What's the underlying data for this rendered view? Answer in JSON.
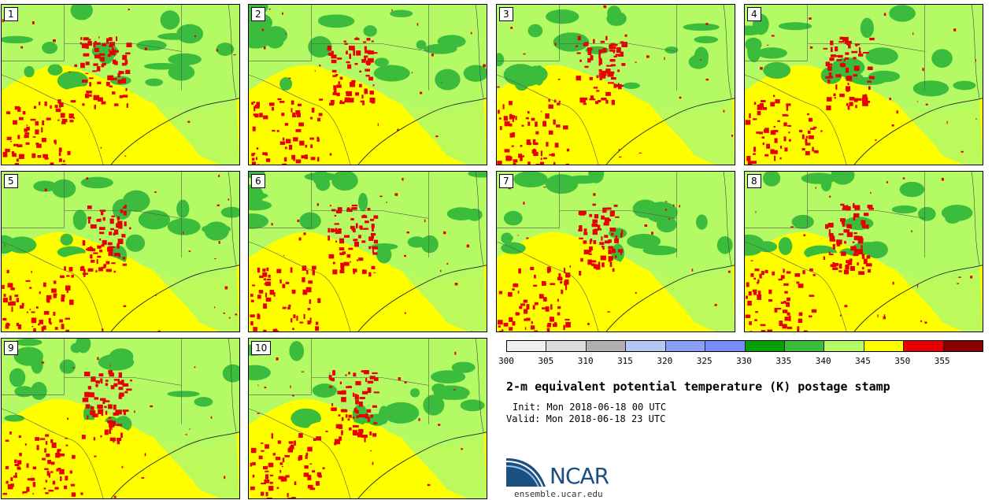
{
  "panels": [
    {
      "label": "1"
    },
    {
      "label": "2"
    },
    {
      "label": "3"
    },
    {
      "label": "4"
    },
    {
      "label": "5"
    },
    {
      "label": "6"
    },
    {
      "label": "7"
    },
    {
      "label": "8"
    },
    {
      "label": "9"
    },
    {
      "label": "10"
    }
  ],
  "colorbar": {
    "colors": [
      "#f0f0f0",
      "#dcdcdc",
      "#b0b0b0",
      "#b4c8f6",
      "#8aa0f8",
      "#788cf8",
      "#06a006",
      "#3cbc3c",
      "#b4fa64",
      "#ffff00",
      "#e80000",
      "#880000"
    ],
    "ticks": [
      "300",
      "305",
      "310",
      "315",
      "320",
      "325",
      "330",
      "335",
      "340",
      "345",
      "350",
      "355"
    ]
  },
  "title": "2-m equivalent potential temperature (K) postage stamp",
  "init": "Init: Mon 2018-06-18 00 UTC",
  "valid": "Valid: Mon 2018-06-18 23 UTC",
  "logo": {
    "text": "NCAR",
    "url": "ensemble.ucar.edu"
  }
}
